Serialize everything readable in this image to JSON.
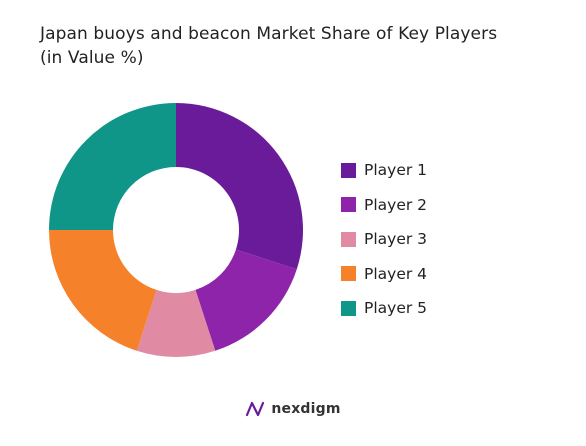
{
  "title_line1": "Japan buoys and beacon Market Share of Key Players",
  "title_line2": "(in Value %)",
  "chart_data": {
    "type": "pie",
    "title": "Japan buoys and beacon Market Share of Key Players (in Value %)",
    "categories": [
      "Player 1",
      "Player 2",
      "Player 3",
      "Player 4",
      "Player 5"
    ],
    "values": [
      30,
      15,
      10,
      20,
      25
    ],
    "colors": [
      "#6a1b9a",
      "#8e24aa",
      "#e08aa3",
      "#f5822a",
      "#0f9688"
    ],
    "donut": true,
    "legend_position": "right"
  },
  "brand": {
    "name": "nexdigm",
    "icon": "nexdigm-logo-icon"
  }
}
